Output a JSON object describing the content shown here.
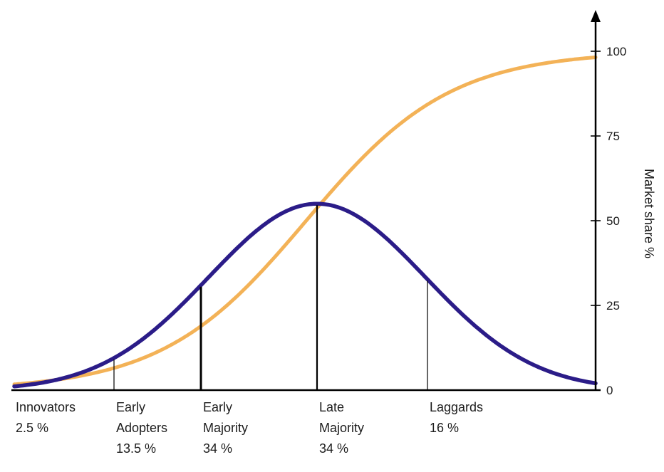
{
  "page": {
    "background": "#ffffff"
  },
  "chart_data": {
    "type": "line",
    "title": "",
    "xlabel": "",
    "ylabel": "Market share %",
    "ylim": [
      0,
      110
    ],
    "y_ticks": [
      0,
      25,
      50,
      75,
      100
    ],
    "grid": false,
    "legend": "none",
    "curves": {
      "bell": {
        "name": "adopter-distribution-bell-curve",
        "color": "#2b1c88",
        "shape": "gaussian",
        "mean_sd": 0,
        "sd": 1,
        "peak_value_pct": 55
      },
      "s_curve": {
        "name": "cumulative-market-share-s-curve",
        "color": "#f3b257",
        "shape": "logistic",
        "max_value_pct": 100,
        "midpoint_sd": -0.1,
        "steepness": 1.5
      }
    },
    "segments": [
      {
        "label": "Innovators",
        "share_label": "2.5 %",
        "share_pct": 2.5
      },
      {
        "label": "Early Adopters",
        "share_label": "13.5 %",
        "share_pct": 13.5
      },
      {
        "label": "Early Majority",
        "share_label": "34 %",
        "share_pct": 34
      },
      {
        "label": "Late Majority",
        "share_label": "34 %",
        "share_pct": 34
      },
      {
        "label": "Laggards",
        "share_label": "16 %",
        "share_pct": 16
      }
    ],
    "segment_boundaries_sd": [
      -2,
      -1,
      0,
      1
    ],
    "cumulative_share_at_boundaries_pct": [
      2.5,
      16,
      50,
      84,
      100
    ]
  }
}
